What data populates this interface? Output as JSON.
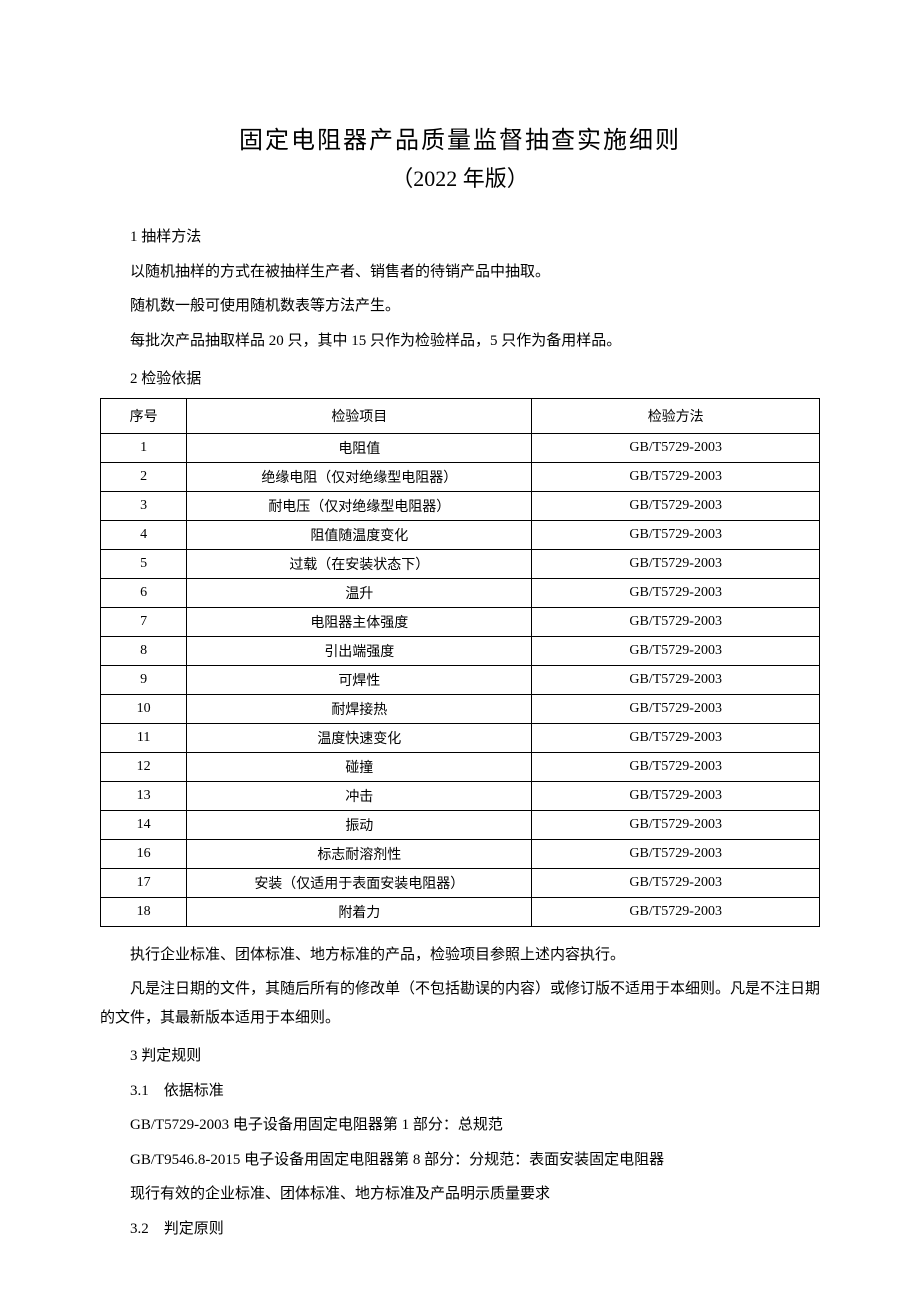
{
  "title": "固定电阻器产品质量监督抽查实施细则",
  "subtitle": "（2022 年版）",
  "section1": {
    "heading": "1 抽样方法",
    "p1": "以随机抽样的方式在被抽样生产者、销售者的待销产品中抽取。",
    "p2": "随机数一般可使用随机数表等方法产生。",
    "p3": "每批次产品抽取样品 20 只，其中 15 只作为检验样品，5 只作为备用样品。"
  },
  "section2": {
    "heading": "2 检验依据",
    "table": {
      "columns": [
        "序号",
        "检验项目",
        "检验方法"
      ],
      "rows": [
        [
          "1",
          "电阻值",
          "GB/T5729-2003"
        ],
        [
          "2",
          "绝缘电阻（仅对绝缘型电阻器）",
          "GB/T5729-2003"
        ],
        [
          "3",
          "耐电压（仅对绝缘型电阻器）",
          "GB/T5729-2003"
        ],
        [
          "4",
          "阻值随温度变化",
          "GB/T5729-2003"
        ],
        [
          "5",
          "过载（在安装状态下）",
          "GB/T5729-2003"
        ],
        [
          "6",
          "温升",
          "GB/T5729-2003"
        ],
        [
          "7",
          "电阻器主体强度",
          "GB/T5729-2003"
        ],
        [
          "8",
          "引出端强度",
          "GB/T5729-2003"
        ],
        [
          "9",
          "可焊性",
          "GB/T5729-2003"
        ],
        [
          "10",
          "耐焊接热",
          "GB/T5729-2003"
        ],
        [
          "11",
          "温度快速变化",
          "GB/T5729-2003"
        ],
        [
          "12",
          "碰撞",
          "GB/T5729-2003"
        ],
        [
          "13",
          "冲击",
          "GB/T5729-2003"
        ],
        [
          "14",
          "振动",
          "GB/T5729-2003"
        ],
        [
          "16",
          "标志耐溶剂性",
          "GB/T5729-2003"
        ],
        [
          "17",
          "安装（仅适用于表面安装电阻器）",
          "GB/T5729-2003"
        ],
        [
          "18",
          "附着力",
          "GB/T5729-2003"
        ]
      ]
    },
    "note1": "执行企业标准、团体标准、地方标准的产品，检验项目参照上述内容执行。",
    "note2": "凡是注日期的文件，其随后所有的修改单（不包括勘误的内容）或修订版不适用于本细则。凡是不注日期的文件，其最新版本适用于本细则。"
  },
  "section3": {
    "heading": "3 判定规则",
    "sub1_heading": "3.1　依据标准",
    "std1": "GB/T5729-2003 电子设备用固定电阻器第 1 部分：总规范",
    "std2": "GB/T9546.8-2015 电子设备用固定电阻器第 8 部分：分规范：表面安装固定电阻器",
    "std3": "现行有效的企业标准、团体标准、地方标准及产品明示质量要求",
    "sub2_heading": "3.2　判定原则"
  }
}
